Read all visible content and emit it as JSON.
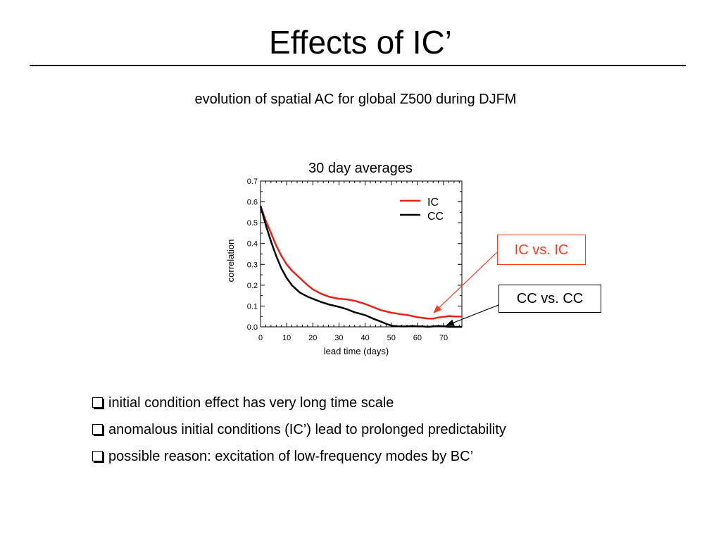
{
  "slide": {
    "title": "Effects of IC’",
    "subtitle": "evolution of spatial AC for global Z500 during DJFM"
  },
  "annotations": {
    "ic_label": "IC vs. IC",
    "cc_label": "CC vs. CC",
    "ic_color": "#ff3b1f",
    "cc_color": "#000000"
  },
  "bullets": [
    {
      "icon": "checkbox-bullet-icon",
      "text": "initial condition effect has very long time scale"
    },
    {
      "icon": "checkbox-bullet-icon",
      "text": "anomalous initial conditions (IC’) lead to prolonged predictability"
    },
    {
      "icon": "checkbox-bullet-icon",
      "text": "possible reason: excitation of low-frequency modes by BC’"
    }
  ],
  "chart_data": {
    "type": "line",
    "title": "30 day averages",
    "xlabel": "lead time (days)",
    "ylabel": "correlation",
    "xlim": [
      0,
      77
    ],
    "ylim": [
      0,
      0.7
    ],
    "xticks": [
      "0",
      "10",
      "20",
      "30",
      "40",
      "50",
      "60",
      "70"
    ],
    "yticks": [
      "0.0",
      "0.1",
      "0.2",
      "0.3",
      "0.4",
      "0.5",
      "0.6",
      "0.7"
    ],
    "legend_position": "top-right",
    "series": [
      {
        "name": "IC",
        "color": "#e8231a",
        "x": [
          0,
          2,
          4,
          6,
          8,
          10,
          12,
          15,
          18,
          20,
          23,
          26,
          30,
          33,
          36,
          40,
          43,
          46,
          50,
          53,
          56,
          58,
          60,
          62,
          64,
          66,
          68,
          70,
          72,
          74,
          77
        ],
        "y": [
          0.58,
          0.51,
          0.45,
          0.39,
          0.34,
          0.3,
          0.27,
          0.235,
          0.2,
          0.18,
          0.16,
          0.145,
          0.135,
          0.132,
          0.125,
          0.11,
          0.095,
          0.08,
          0.068,
          0.062,
          0.057,
          0.052,
          0.046,
          0.043,
          0.04,
          0.04,
          0.045,
          0.048,
          0.052,
          0.05,
          0.05
        ]
      },
      {
        "name": "CC",
        "color": "#000000",
        "x": [
          0,
          2,
          4,
          6,
          8,
          10,
          12,
          15,
          18,
          20,
          23,
          26,
          30,
          33,
          36,
          40,
          43,
          46,
          48,
          50,
          52,
          54,
          56,
          58,
          60,
          62,
          64,
          66,
          68,
          70,
          72,
          74,
          77
        ],
        "y": [
          0.58,
          0.49,
          0.41,
          0.34,
          0.28,
          0.235,
          0.2,
          0.165,
          0.145,
          0.135,
          0.12,
          0.108,
          0.096,
          0.085,
          0.07,
          0.056,
          0.04,
          0.025,
          0.015,
          0.006,
          0.003,
          0.002,
          0.002,
          0.004,
          0.002,
          0.002,
          0.0,
          0.002,
          0.004,
          0.003,
          0.0,
          0.0,
          0.0
        ]
      }
    ]
  }
}
